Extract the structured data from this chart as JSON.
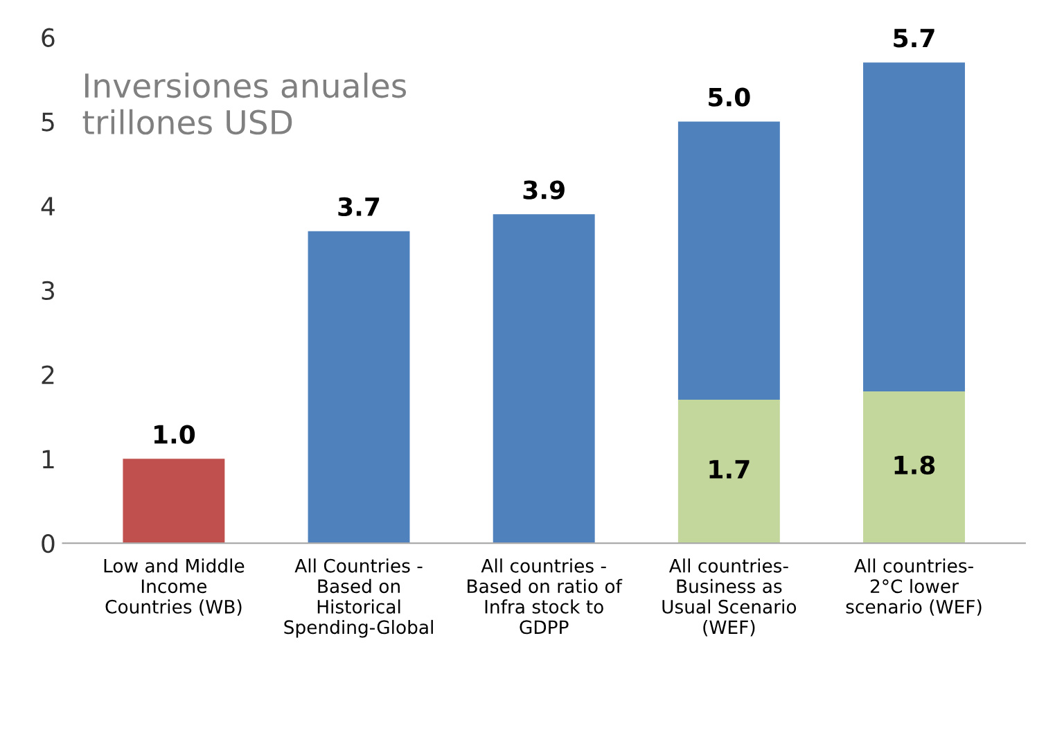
{
  "chart_data": {
    "type": "bar",
    "title": "Inversiones anuales\ntrillones USD",
    "stacked": true,
    "categories": [
      "Low and Middle\nIncome\nCountries (WB)",
      "All Countries -\nBased on\nHistorical\nSpending-Global",
      "All countries -\nBased on ratio of\nInfra stock to\nGDPP",
      "All countries-\nBusiness as\nUsual Scenario\n(WEF)",
      "All countries-\n2°C lower\nscenario (WEF)"
    ],
    "series": [
      {
        "color": "#c3d69b",
        "values": [
          null,
          null,
          null,
          1.7,
          1.8
        ],
        "value_labels": [
          null,
          null,
          null,
          "1.7",
          "1.8"
        ]
      },
      {
        "color": "#c0504d",
        "values": [
          1.0,
          null,
          null,
          null,
          null
        ]
      },
      {
        "color": "#4f81bd",
        "values": [
          null,
          3.7,
          3.9,
          3.3,
          3.9
        ]
      }
    ],
    "totals": [
      "1.0",
      "3.7",
      "3.9",
      "5.0",
      "5.7"
    ],
    "ylim": [
      0,
      6
    ],
    "yticks": [
      0,
      1,
      2,
      3,
      4,
      5,
      6
    ],
    "grid": false,
    "legend": false
  }
}
